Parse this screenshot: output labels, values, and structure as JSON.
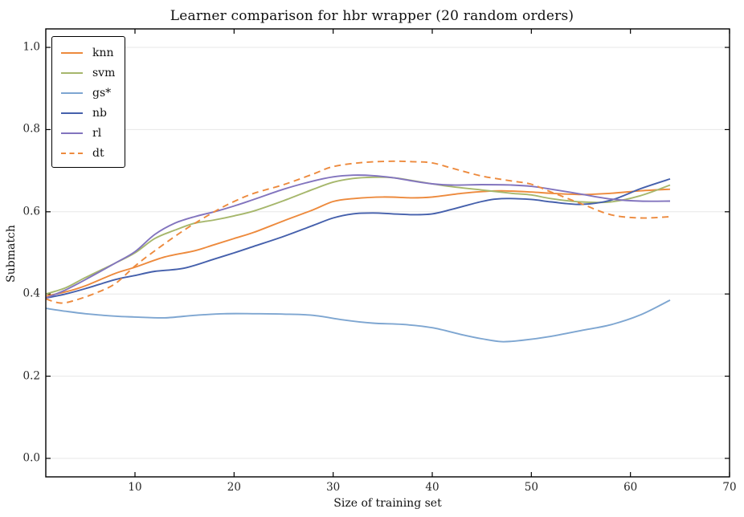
{
  "title": "Learner comparison for hbr wrapper (20 random orders)",
  "axes": {
    "xlabel": "Size of training set",
    "ylabel": "Submatch",
    "x_tick_labels": [
      "10",
      "20",
      "30",
      "40",
      "50",
      "60",
      "70"
    ],
    "y_tick_labels": [
      "0.0",
      "0.2",
      "0.4",
      "0.6",
      "0.8",
      "1.0"
    ]
  },
  "colors": {
    "grid": "#e7e7e7",
    "spine": "#000000",
    "background": "#ffffff"
  },
  "chart_data": {
    "type": "line",
    "title": "Learner comparison for hbr wrapper (20 random orders)",
    "xlabel": "Size of training set",
    "ylabel": "Submatch",
    "xlim": [
      1,
      70
    ],
    "ylim": [
      -0.045,
      1.045
    ],
    "x_ticks": [
      10,
      20,
      30,
      40,
      50,
      60,
      70
    ],
    "y_ticks": [
      0.0,
      0.2,
      0.4,
      0.6,
      0.8,
      1.0
    ],
    "grid": "horizontal",
    "legend_position": "upper-left",
    "series": [
      {
        "name": "knn",
        "color": "#ED8A3D",
        "dash": false,
        "x": [
          1,
          3,
          5,
          8,
          10,
          13,
          16,
          18,
          20,
          22,
          25,
          28,
          30,
          32,
          35,
          38,
          40,
          43,
          45,
          47,
          50,
          52,
          55,
          58,
          61,
          64
        ],
        "y": [
          0.395,
          0.405,
          0.42,
          0.45,
          0.465,
          0.49,
          0.505,
          0.52,
          0.535,
          0.55,
          0.578,
          0.605,
          0.625,
          0.632,
          0.636,
          0.634,
          0.636,
          0.645,
          0.649,
          0.651,
          0.648,
          0.645,
          0.642,
          0.645,
          0.651,
          0.655
        ]
      },
      {
        "name": "svm",
        "color": "#A6B76C",
        "dash": false,
        "x": [
          1,
          3,
          5,
          8,
          10,
          12,
          14,
          16,
          18,
          20,
          22,
          25,
          28,
          30,
          32,
          34,
          36,
          38,
          40,
          42,
          45,
          48,
          50,
          52,
          55,
          58,
          61,
          64
        ],
        "y": [
          0.4,
          0.415,
          0.44,
          0.475,
          0.5,
          0.535,
          0.555,
          0.572,
          0.58,
          0.59,
          0.602,
          0.627,
          0.655,
          0.672,
          0.681,
          0.684,
          0.683,
          0.676,
          0.668,
          0.661,
          0.653,
          0.645,
          0.641,
          0.632,
          0.624,
          0.624,
          0.639,
          0.665
        ]
      },
      {
        "name": "gs*",
        "color": "#7EA6D1",
        "dash": false,
        "x": [
          1,
          3,
          5,
          8,
          10,
          13,
          16,
          19,
          22,
          25,
          28,
          31,
          34,
          37,
          40,
          43,
          45,
          47,
          49,
          52,
          55,
          58,
          61,
          64
        ],
        "y": [
          0.365,
          0.358,
          0.352,
          0.346,
          0.344,
          0.342,
          0.348,
          0.352,
          0.352,
          0.351,
          0.348,
          0.337,
          0.329,
          0.326,
          0.318,
          0.301,
          0.291,
          0.284,
          0.287,
          0.297,
          0.311,
          0.325,
          0.349,
          0.385
        ]
      },
      {
        "name": "nb",
        "color": "#4560AC",
        "dash": false,
        "x": [
          1,
          3,
          5,
          8,
          10,
          12,
          15,
          18,
          20,
          22,
          25,
          28,
          30,
          32,
          34,
          36,
          38,
          40,
          42,
          45,
          47,
          50,
          52,
          55,
          58,
          61,
          64
        ],
        "y": [
          0.39,
          0.4,
          0.413,
          0.435,
          0.445,
          0.455,
          0.463,
          0.485,
          0.5,
          0.516,
          0.54,
          0.567,
          0.585,
          0.595,
          0.597,
          0.595,
          0.593,
          0.595,
          0.606,
          0.625,
          0.632,
          0.63,
          0.624,
          0.618,
          0.628,
          0.656,
          0.68
        ]
      },
      {
        "name": "rl",
        "color": "#8274BE",
        "dash": false,
        "x": [
          1,
          3,
          5,
          8,
          10,
          12,
          14,
          16,
          18,
          20,
          22,
          25,
          28,
          30,
          32,
          34,
          36,
          38,
          40,
          42,
          45,
          48,
          50,
          52,
          55,
          58,
          61,
          64
        ],
        "y": [
          0.39,
          0.41,
          0.435,
          0.475,
          0.503,
          0.545,
          0.572,
          0.588,
          0.6,
          0.614,
          0.63,
          0.655,
          0.675,
          0.685,
          0.689,
          0.688,
          0.683,
          0.675,
          0.668,
          0.665,
          0.666,
          0.665,
          0.662,
          0.655,
          0.643,
          0.631,
          0.626,
          0.626
        ]
      },
      {
        "name": "dt",
        "color": "#ED8A3D",
        "dash": true,
        "x": [
          1,
          2.5,
          4,
          6,
          8,
          10,
          12,
          15,
          18,
          20,
          22,
          25,
          28,
          30,
          33,
          36,
          38,
          40,
          42,
          45,
          48,
          50,
          52,
          55,
          58,
          61,
          64
        ],
        "y": [
          0.388,
          0.378,
          0.385,
          0.402,
          0.425,
          0.468,
          0.505,
          0.556,
          0.6,
          0.625,
          0.645,
          0.666,
          0.692,
          0.71,
          0.72,
          0.723,
          0.722,
          0.719,
          0.706,
          0.687,
          0.675,
          0.667,
          0.648,
          0.62,
          0.593,
          0.585,
          0.588
        ]
      }
    ]
  }
}
